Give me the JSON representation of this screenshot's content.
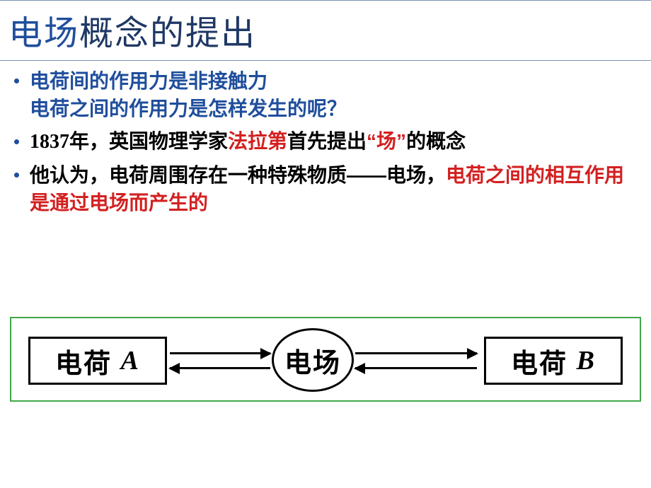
{
  "title": {
    "part1": "电场",
    "part2": "概念的提出",
    "part1_color": "#1f4e9c",
    "part2_color": "#1f3864",
    "title_fontsize": 48
  },
  "bullets": [
    {
      "dot_color": "#1f4e9c",
      "runs": [
        {
          "text": "电荷间的作用力是非接触力",
          "color": "#1f4e9c",
          "bold": true,
          "break_after": true
        },
        {
          "text": "电荷之间的作用力是怎样发生的呢？",
          "color": "#1f4e9c",
          "bold": true
        }
      ]
    },
    {
      "dot_color": "#1f4e9c",
      "runs": [
        {
          "text": "1837",
          "color": "#000000",
          "bold": true,
          "serif": true
        },
        {
          "text": "年，英国物理学家",
          "color": "#000000",
          "bold": true
        },
        {
          "text": "法拉第",
          "color": "#d32020",
          "bold": true
        },
        {
          "text": "首先提出",
          "color": "#000000",
          "bold": true
        },
        {
          "text": "“场”",
          "color": "#d32020",
          "bold": true
        },
        {
          "text": "的概念",
          "color": "#000000",
          "bold": true
        }
      ]
    },
    {
      "dot_color": "#1f4e9c",
      "runs": [
        {
          "text": "他认为，电荷周围存在一种特殊物质——电场，",
          "color": "#000000",
          "bold": true
        },
        {
          "text": "电荷之间的相互作用是通过电场而产生的",
          "color": "#d32020",
          "bold": true
        }
      ]
    }
  ],
  "diagram": {
    "type": "flowchart",
    "border_color": "#3fa84a",
    "background_color": "#ffffff",
    "node_border_color": "#000000",
    "node_text_color": "#000000",
    "node_fontsize": 38,
    "arrow_color": "#000000",
    "nodes": {
      "A": {
        "label_main": "电荷",
        "label_sub": "A",
        "shape": "rect"
      },
      "field": {
        "label": "电场",
        "shape": "ellipse"
      },
      "B": {
        "label_main": "电荷",
        "label_sub": "B",
        "shape": "rect"
      }
    },
    "edges": [
      {
        "from": "A",
        "to": "field",
        "bidirectional": true
      },
      {
        "from": "field",
        "to": "B",
        "bidirectional": true
      }
    ]
  }
}
